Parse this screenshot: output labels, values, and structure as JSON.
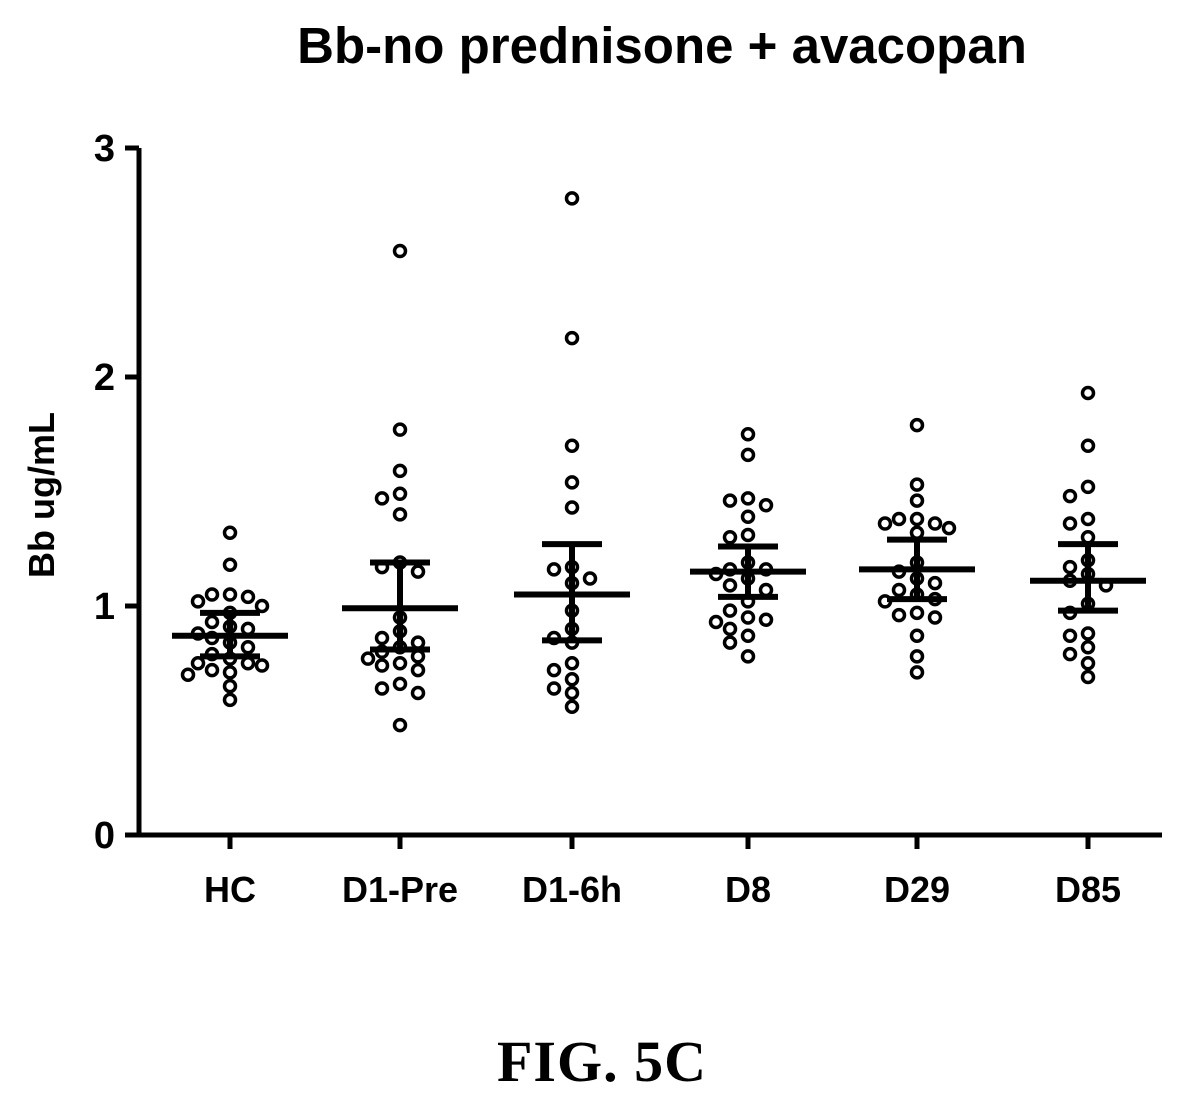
{
  "chart_data": {
    "type": "scatter",
    "title": "Bb-no prednisone + avacopan",
    "xlabel": "",
    "ylabel": "Bb ug/mL",
    "ylim": [
      0,
      3
    ],
    "yticks": [
      "0",
      "1",
      "2",
      "3"
    ],
    "grid": false,
    "legend": "none",
    "categories": [
      "HC",
      "D1-Pre",
      "D1-6h",
      "D8",
      "D29",
      "D85"
    ],
    "series": [
      {
        "category": "HC",
        "mean": 0.87,
        "error_low": 0.78,
        "error_high": 0.97,
        "points": [
          1.32,
          1.18,
          1.05,
          1.05,
          1.04,
          1.02,
          1.0,
          0.97,
          0.93,
          0.91,
          0.9,
          0.88,
          0.86,
          0.84,
          0.82,
          0.79,
          0.77,
          0.75,
          0.75,
          0.74,
          0.72,
          0.71,
          0.7,
          0.65,
          0.59
        ]
      },
      {
        "category": "D1-Pre",
        "mean": 0.99,
        "error_low": 0.81,
        "error_high": 1.19,
        "points": [
          2.55,
          1.77,
          1.59,
          1.49,
          1.47,
          1.4,
          1.19,
          1.17,
          1.15,
          0.95,
          0.89,
          0.86,
          0.84,
          0.82,
          0.8,
          0.78,
          0.77,
          0.75,
          0.74,
          0.72,
          0.66,
          0.64,
          0.62,
          0.48
        ]
      },
      {
        "category": "D1-6h",
        "mean": 1.05,
        "error_low": 0.85,
        "error_high": 1.27,
        "points": [
          2.78,
          2.17,
          1.7,
          1.54,
          1.43,
          1.17,
          1.16,
          1.12,
          1.1,
          0.98,
          0.9,
          0.86,
          0.84,
          0.75,
          0.72,
          0.68,
          0.64,
          0.62,
          0.56
        ]
      },
      {
        "category": "D8",
        "mean": 1.15,
        "error_low": 1.04,
        "error_high": 1.26,
        "points": [
          1.75,
          1.66,
          1.47,
          1.46,
          1.44,
          1.39,
          1.31,
          1.3,
          1.19,
          1.16,
          1.16,
          1.14,
          1.12,
          1.09,
          1.07,
          1.02,
          0.98,
          0.95,
          0.94,
          0.93,
          0.9,
          0.87,
          0.84,
          0.78
        ]
      },
      {
        "category": "D29",
        "mean": 1.16,
        "error_low": 1.03,
        "error_high": 1.29,
        "points": [
          1.79,
          1.53,
          1.46,
          1.38,
          1.38,
          1.36,
          1.36,
          1.34,
          1.32,
          1.19,
          1.15,
          1.12,
          1.1,
          1.07,
          1.05,
          1.03,
          1.02,
          0.97,
          0.96,
          0.95,
          0.87,
          0.78,
          0.71
        ]
      },
      {
        "category": "D85",
        "mean": 1.11,
        "error_low": 0.98,
        "error_high": 1.27,
        "points": [
          1.93,
          1.7,
          1.52,
          1.48,
          1.38,
          1.36,
          1.3,
          1.2,
          1.17,
          1.14,
          1.11,
          1.09,
          1.01,
          0.97,
          0.88,
          0.87,
          0.82,
          0.79,
          0.75,
          0.69
        ]
      }
    ]
  },
  "caption": "FIG. 5C",
  "colors": {
    "foreground": "#000000",
    "background": "#ffffff"
  }
}
